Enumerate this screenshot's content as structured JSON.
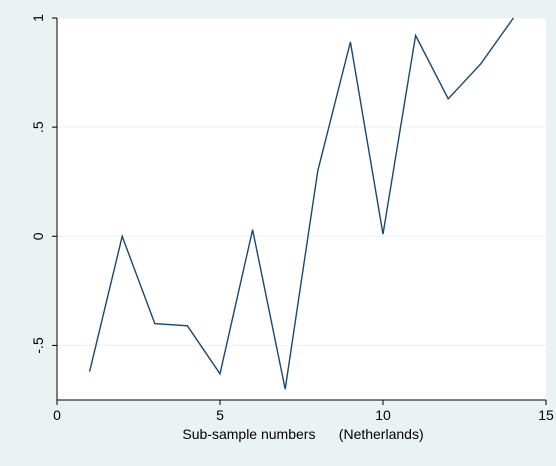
{
  "chart_data": {
    "type": "line",
    "xlabel": "Sub-sample numbers      (Netherlands)",
    "ylabel": "",
    "xlim": [
      0,
      15
    ],
    "ylim": [
      -0.75,
      1.0
    ],
    "x_ticks": [
      0,
      5,
      10,
      15
    ],
    "x_tick_labels": [
      "0",
      "5",
      "10",
      "15"
    ],
    "y_ticks": [
      -0.5,
      0,
      0.5,
      1
    ],
    "y_tick_labels": [
      "-.5",
      "0",
      ".5",
      "1"
    ],
    "grid": true,
    "series": [
      {
        "color": "#1a476f",
        "x": [
          1,
          2,
          3,
          4,
          5,
          6,
          7,
          8,
          9,
          10,
          11,
          12,
          13,
          14
        ],
        "y": [
          -0.62,
          0.0,
          -0.4,
          -0.41,
          -0.63,
          0.03,
          -0.7,
          0.3,
          0.89,
          0.01,
          0.92,
          0.63,
          0.79,
          1.0
        ]
      }
    ]
  }
}
